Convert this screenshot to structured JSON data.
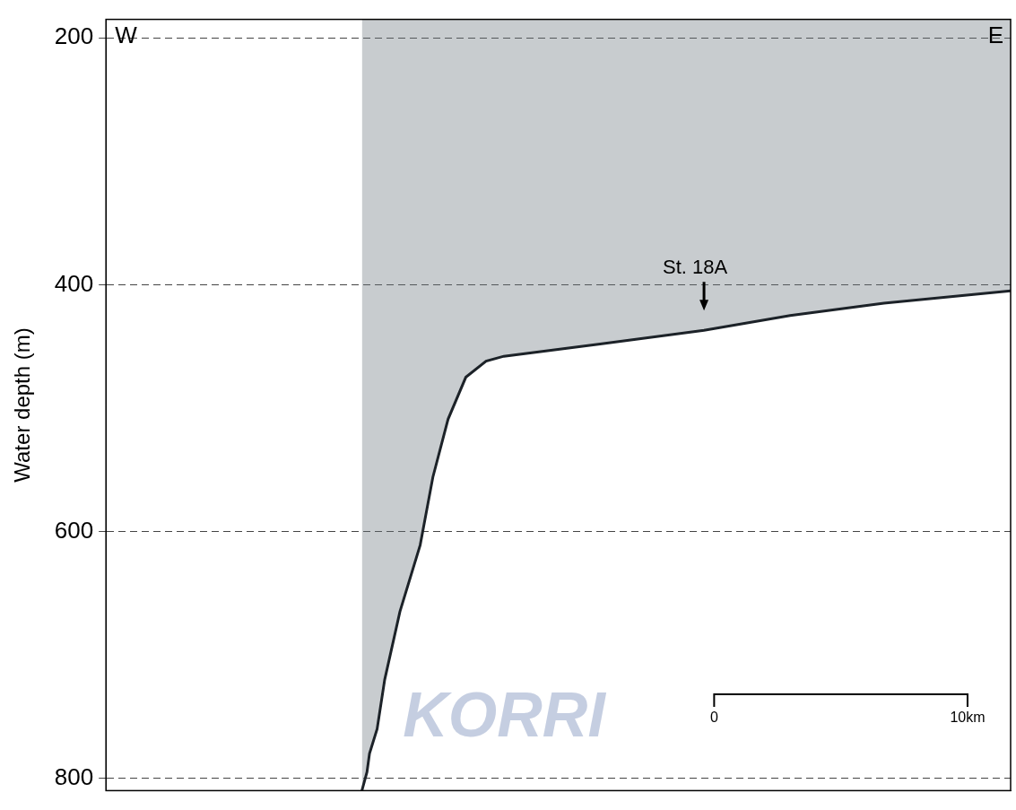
{
  "chart_data": {
    "type": "line",
    "y_label": "Water depth (m)",
    "x": [
      10.1,
      10.3,
      10.4,
      10.7,
      11.0,
      11.6,
      12.4,
      12.9,
      13.5,
      14.2,
      15.0,
      15.7,
      19.5,
      23.6,
      27.0,
      30.7,
      35.7
    ],
    "values": [
      810,
      795,
      780,
      760,
      720,
      665,
      611,
      556,
      509,
      475,
      462,
      458,
      448,
      437,
      425,
      415,
      405
    ],
    "xlim": [
      0,
      35.7
    ],
    "ylim": [
      185,
      810
    ],
    "yticks": [
      200,
      400,
      600,
      800
    ],
    "grid": true,
    "tick_labels": "y",
    "color": "#1c2228",
    "corner_labels": {
      "left": "W",
      "right": "E"
    },
    "annotations": [
      {
        "text": "St. 18A",
        "x": 23.6,
        "y": 421
      }
    ],
    "scale_bar": {
      "x": [
        24.0,
        34.0
      ],
      "y": 732,
      "labels": [
        "0",
        "10km"
      ]
    },
    "watermark": "KORRI"
  }
}
